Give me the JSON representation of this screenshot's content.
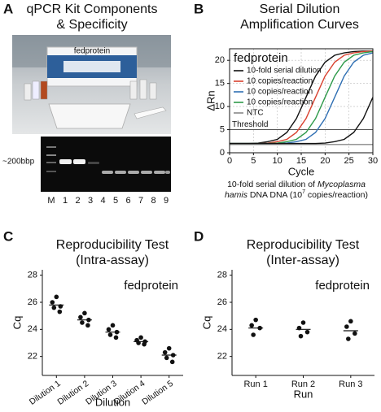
{
  "panel_a": {
    "letter": "A",
    "title": [
      "qPCR Kit Components",
      "& Specificity"
    ],
    "box_label": "fedprotein",
    "band_label": "~200bbp",
    "lanes": [
      "M",
      "1",
      "2",
      "3",
      "4",
      "5",
      "6",
      "7",
      "8",
      "9"
    ]
  },
  "chart_data": [
    {
      "type": "line",
      "panel": "B",
      "title": [
        "Serial Dilution",
        "Amplification Curves"
      ],
      "x": [
        0,
        2,
        4,
        6,
        8,
        10,
        12,
        14,
        16,
        18,
        20,
        22,
        24,
        26,
        28,
        30
      ],
      "series": [
        {
          "name": "10-fold serial dilution",
          "color": "#111111",
          "values": [
            2.0,
            2.0,
            2.0,
            2.1,
            2.4,
            2.9,
            4.4,
            7.4,
            12,
            16.6,
            19.6,
            21.1,
            21.6,
            21.9,
            22.0,
            22.0
          ]
        },
        {
          "name": "10 copies/reaction",
          "color": "#d9412f",
          "values": [
            2.0,
            2.0,
            2.0,
            2.0,
            2.1,
            2.4,
            2.9,
            4.4,
            7.4,
            12,
            16.6,
            19.6,
            21.1,
            21.6,
            21.9,
            22.0
          ]
        },
        {
          "name": "10 copies/reaction",
          "color": "#2f6fb3",
          "values": [
            2.0,
            2.0,
            2.0,
            2.0,
            2.0,
            2.0,
            2.1,
            2.4,
            2.9,
            4.4,
            7.4,
            12,
            16.6,
            19.6,
            21.1,
            21.6
          ]
        },
        {
          "name": "10 copies/reaction",
          "color": "#2e9a4a",
          "values": [
            2.0,
            2.0,
            2.0,
            2.0,
            2.0,
            2.1,
            2.4,
            2.9,
            4.4,
            7.4,
            12,
            16.6,
            19.6,
            21.1,
            21.6,
            21.9
          ]
        },
        {
          "name": "NTC",
          "color": "#888888",
          "values": [
            1.8,
            1.8,
            1.8,
            1.8,
            1.8,
            1.8,
            1.8,
            1.8,
            1.8,
            1.8,
            1.8,
            1.8,
            1.8,
            1.8,
            1.8,
            1.8
          ]
        },
        {
          "color": "#111111",
          "values": [
            2.0,
            2.0,
            2.0,
            2.0,
            2.0,
            2.0,
            2.0,
            2.0,
            2.0,
            2.0,
            2.1,
            2.4,
            2.9,
            4.4,
            7.4,
            12
          ]
        }
      ],
      "legend_title": "fedprotein",
      "threshold": 5,
      "threshold_label": "Threshold",
      "xlabel": "Cycle",
      "ylabel": "ΔRn",
      "xlim": [
        0,
        30
      ],
      "xticks": [
        0,
        5,
        10,
        15,
        20,
        25,
        30
      ],
      "ylim": [
        0,
        22.5
      ],
      "yticks": [
        0,
        5,
        10,
        15,
        20
      ],
      "grid": true,
      "caption": [
        [
          {
            "text": "10-fold serial dilution of ",
            "style": "normal"
          },
          {
            "text": "Mycoplasma",
            "style": "italic"
          }
        ],
        [
          {
            "text": "hamis",
            "style": "italic"
          },
          {
            "text": " DNA DNA (10",
            "style": "normal"
          },
          {
            "text": "7",
            "style": "sup"
          },
          {
            "text": " copies/reaction)",
            "style": "normal"
          }
        ]
      ]
    },
    {
      "type": "dot",
      "panel": "C",
      "title": [
        "Reproducibility Test",
        "(Intra-assay)"
      ],
      "annotation": "fedprotein",
      "categories": [
        "Dilution 1",
        "Dilution 2",
        "Dilution 3",
        "Dilution 4",
        "Dilution 5"
      ],
      "points": [
        [
          26.4,
          26.0,
          25.7,
          25.6,
          25.3
        ],
        [
          25.2,
          24.9,
          24.7,
          24.5,
          24.3
        ],
        [
          24.3,
          24.0,
          23.8,
          23.6,
          23.4
        ],
        [
          23.4,
          23.2,
          23.1,
          23.0,
          22.9
        ],
        [
          22.6,
          22.3,
          22.1,
          21.9,
          21.6
        ]
      ],
      "means": [
        25.8,
        24.7,
        23.8,
        23.1,
        22.1
      ],
      "color": "#111111",
      "rotate_labels": true,
      "xlabel": "Dilution",
      "ylabel": "Cq",
      "ylim": [
        20.6,
        28.4
      ],
      "yticks": [
        22,
        24,
        26,
        28
      ]
    },
    {
      "type": "dot",
      "panel": "D",
      "title": [
        "Reproducibility Test",
        "(Inter-assay)"
      ],
      "annotation": "fedprotein",
      "categories": [
        "Run 1",
        "Run 2",
        "Run 3"
      ],
      "points": [
        [
          24.7,
          24.3,
          24.1,
          23.6
        ],
        [
          24.5,
          24.1,
          23.8,
          23.5
        ],
        [
          24.6,
          24.2,
          23.7,
          23.3
        ]
      ],
      "means": [
        24.1,
        24.0,
        23.9
      ],
      "color": "#111111",
      "rotate_labels": false,
      "xlabel": "Run",
      "ylabel": "Cq",
      "ylim": [
        20.6,
        28.4
      ],
      "yticks": [
        22,
        24,
        26,
        28
      ]
    }
  ]
}
